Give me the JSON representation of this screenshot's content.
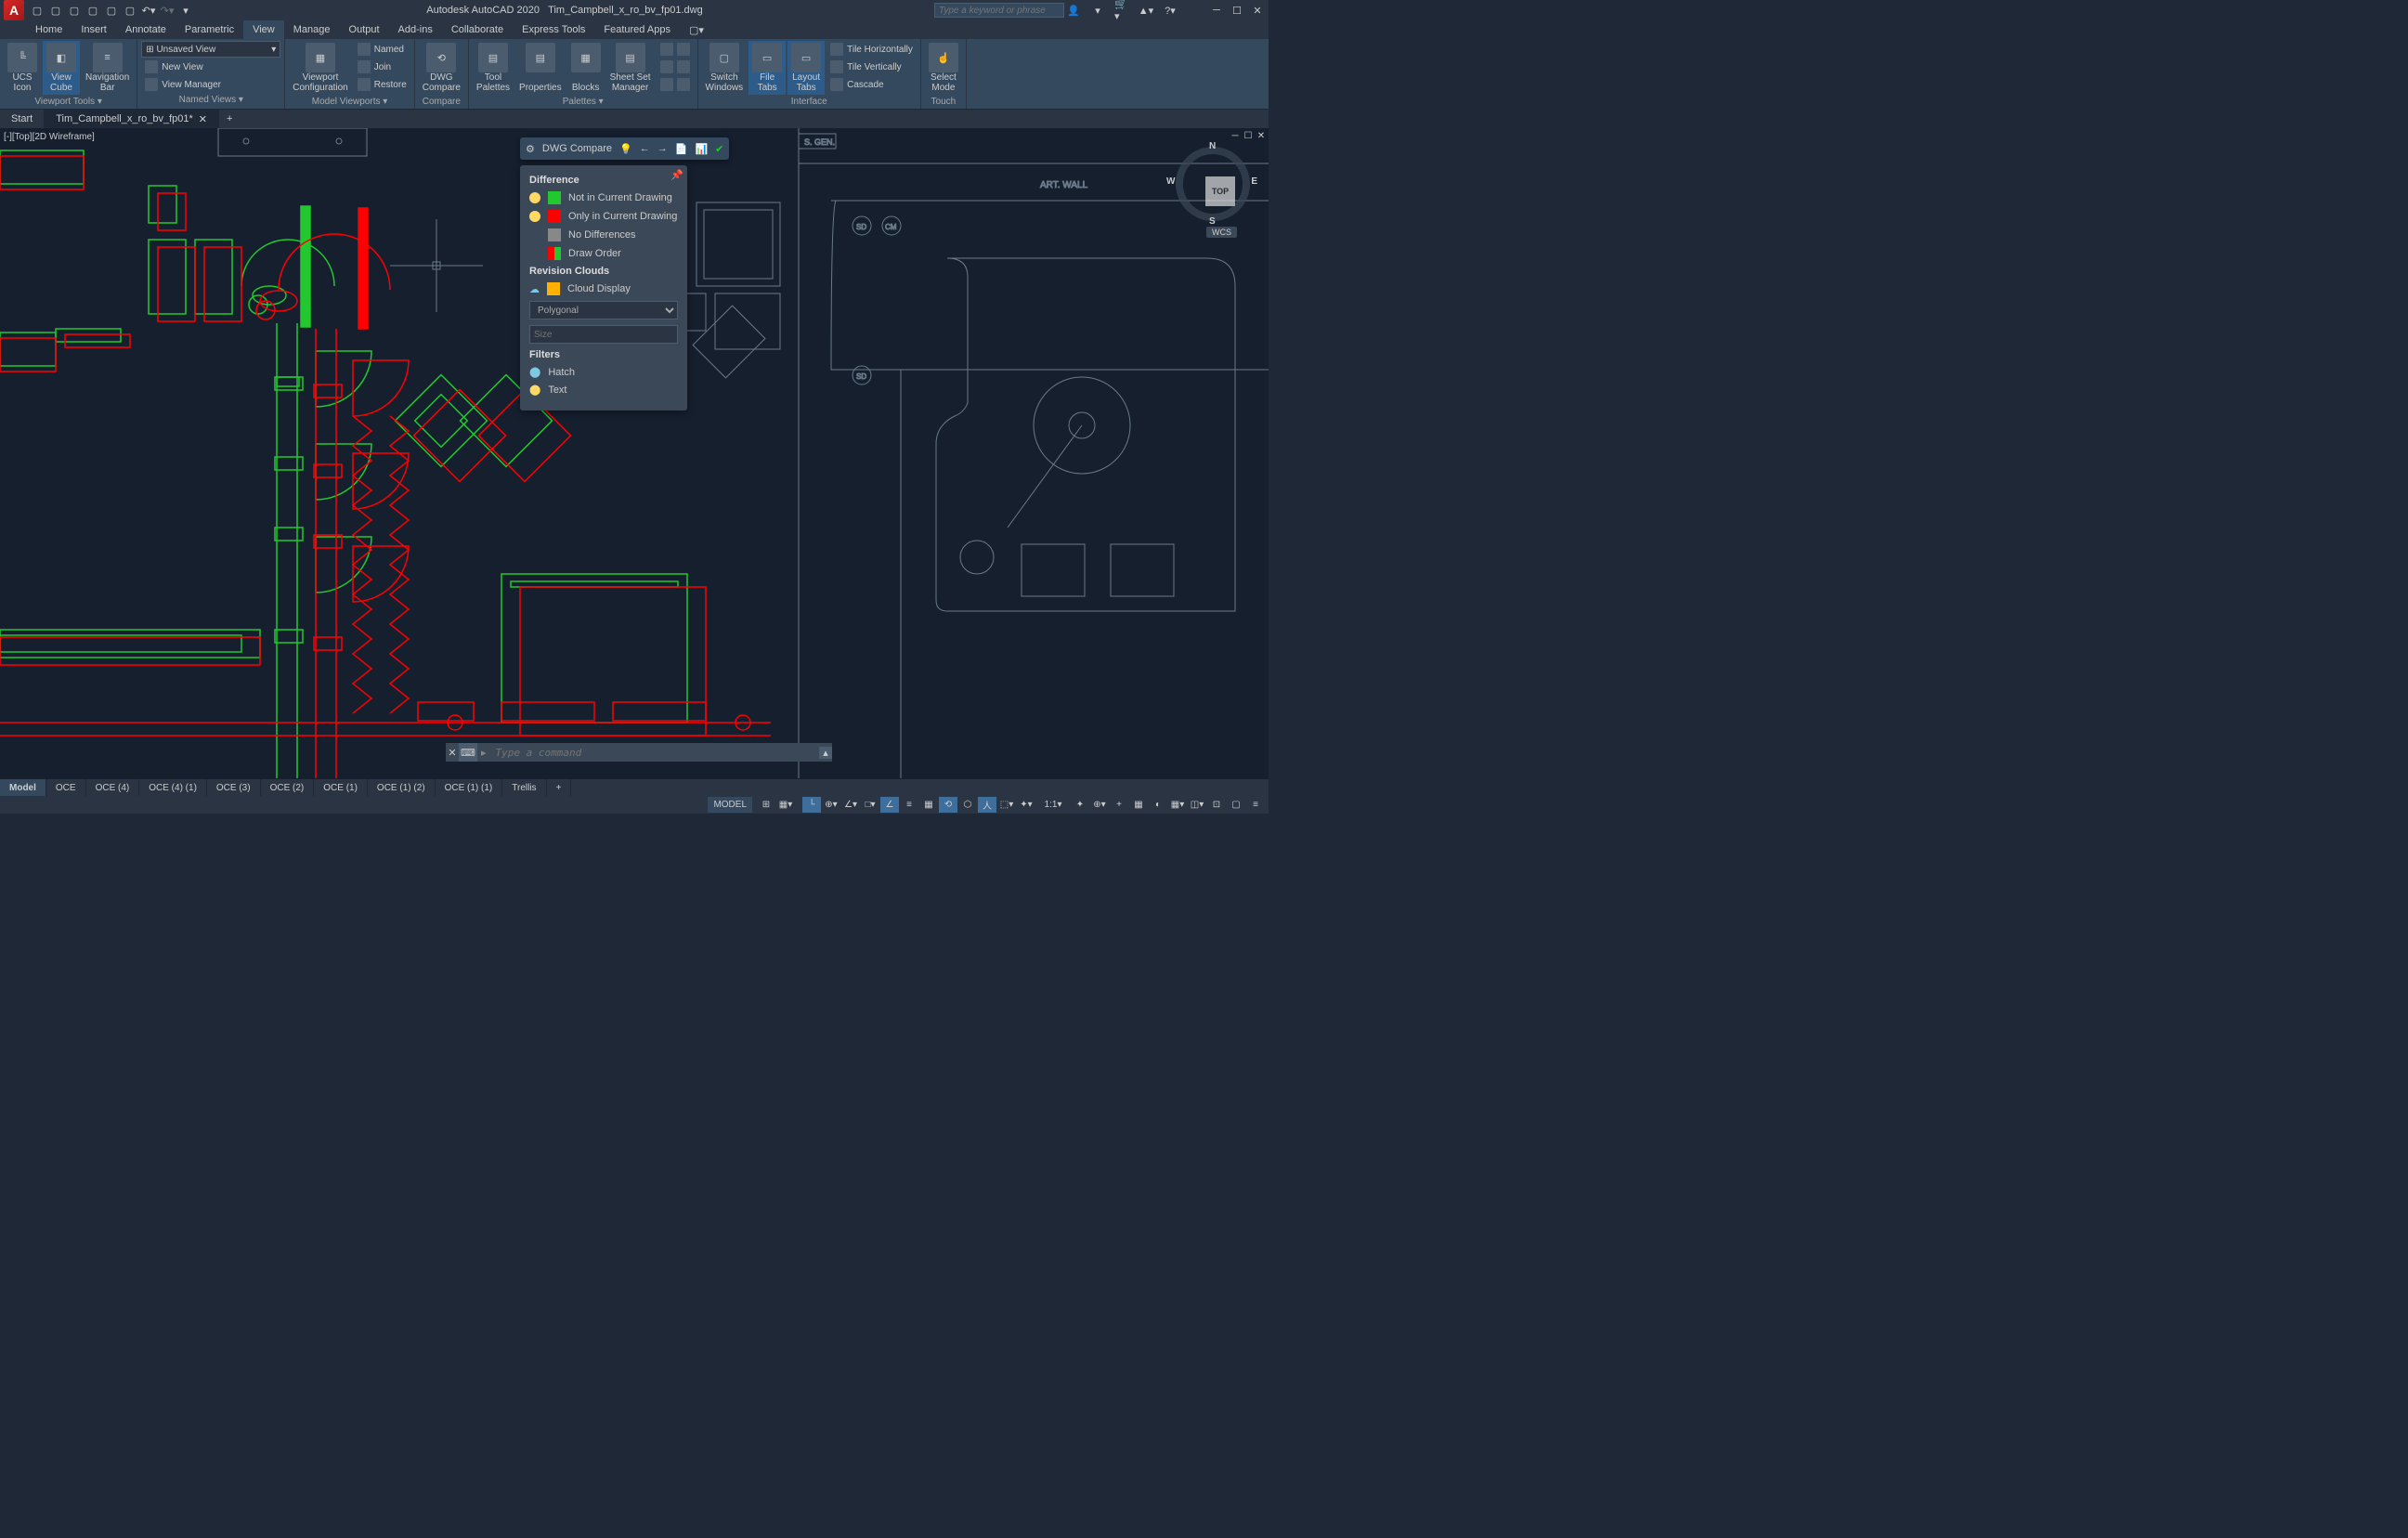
{
  "title": {
    "app": "Autodesk AutoCAD 2020",
    "file": "Tim_Campbell_x_ro_bv_fp01.dwg"
  },
  "search_placeholder": "Type a keyword or phrase",
  "menu_tabs": [
    "Home",
    "Insert",
    "Annotate",
    "Parametric",
    "View",
    "Manage",
    "Output",
    "Add-ins",
    "Collaborate",
    "Express Tools",
    "Featured Apps"
  ],
  "menu_active": "View",
  "ribbon": {
    "viewport_tools": {
      "label": "Viewport Tools ▾",
      "ucs": "UCS\nIcon",
      "cube": "View\nCube",
      "nav": "Navigation\nBar"
    },
    "named_views": {
      "label": "Named Views ▾",
      "combo": "Unsaved View",
      "new": "New View",
      "mgr": "View Manager"
    },
    "model_viewports": {
      "label": "Model Viewports ▾",
      "config": "Viewport\nConfiguration",
      "named": "Named",
      "join": "Join",
      "restore": "Restore"
    },
    "compare": {
      "label": "Compare",
      "btn": "DWG\nCompare"
    },
    "palettes": {
      "label": "Palettes ▾",
      "tool": "Tool\nPalettes",
      "props": "Properties",
      "blocks": "Blocks",
      "sheet": "Sheet Set\nManager"
    },
    "interface": {
      "label": "Interface",
      "switch": "Switch\nWindows",
      "filetabs": "File\nTabs",
      "layouttabs": "Layout\nTabs",
      "th": "Tile Horizontally",
      "tv": "Tile Vertically",
      "cascade": "Cascade"
    },
    "touch": {
      "label": "Touch",
      "select": "Select\nMode"
    }
  },
  "file_tabs": {
    "start": "Start",
    "doc": "Tim_Campbell_x_ro_bv_fp01*"
  },
  "viewport_label": "[-][Top][2D Wireframe]",
  "viewcube": {
    "face": "TOP",
    "n": "N",
    "s": "S",
    "e": "E",
    "w": "W",
    "wcs": "WCS"
  },
  "compare_toolbar": {
    "label": "DWG Compare"
  },
  "compare_panel": {
    "h_diff": "Difference",
    "not_current": {
      "label": "Not in Current Drawing",
      "color": "#22c82e"
    },
    "only_current": {
      "label": "Only in Current Drawing",
      "color": "#ff0000"
    },
    "no_diff": {
      "label": "No Differences",
      "color": "#888888"
    },
    "draw_order": {
      "label": "Draw Order",
      "c1": "#ff0000",
      "c2": "#22c82e"
    },
    "h_clouds": "Revision Clouds",
    "cloud_display": {
      "label": "Cloud Display",
      "color": "#ffb000"
    },
    "shape": "Polygonal",
    "size": "Size",
    "h_filters": "Filters",
    "hatch": "Hatch",
    "text": "Text"
  },
  "command_placeholder": "Type a command",
  "layout_tabs": [
    "Model",
    "OCE",
    "OCE (4)",
    "OCE (4) (1)",
    "OCE (3)",
    "OCE (2)",
    "OCE (1)",
    "OCE (1) (2)",
    "OCE (1) (1)",
    "Trellis"
  ],
  "layout_active": "Model",
  "status_model": "MODEL",
  "status_scale": "1:1",
  "drawing_text": {
    "sgen": "S. GEN.",
    "artwall": "ART. WALL",
    "sd": "SD",
    "cm": "CM"
  },
  "colors": {
    "bg": "#151f2e",
    "panel": "#34495e",
    "green": "#22c82e",
    "red": "#ff0000",
    "gray_line": "#6a7a8a",
    "light_gray": "#c8c8c8"
  }
}
